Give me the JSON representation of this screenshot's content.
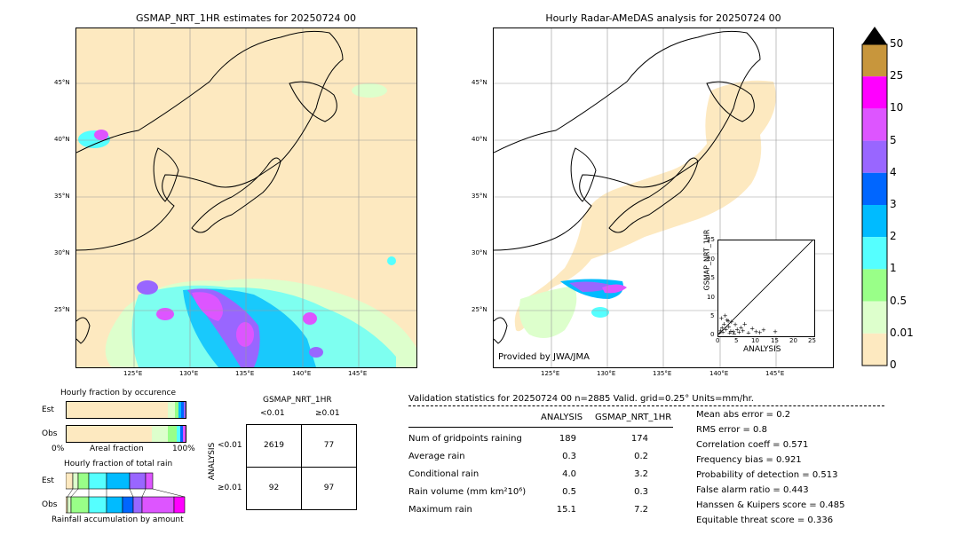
{
  "left_map": {
    "title": "GSMAP_NRT_1HR estimates for 20250724 00",
    "lat_labels": [
      "45°N",
      "40°N",
      "35°N",
      "30°N",
      "25°N"
    ],
    "lon_labels": [
      "125°E",
      "130°E",
      "135°E",
      "140°E",
      "145°E"
    ]
  },
  "right_map": {
    "title": "Hourly Radar-AMeDAS analysis for 20250724 00",
    "lat_labels": [
      "45°N",
      "40°N",
      "35°N",
      "30°N",
      "25°N"
    ],
    "lon_labels": [
      "125°E",
      "130°E",
      "135°E",
      "140°E",
      "145°E"
    ],
    "credit": "Provided by JWA/JMA"
  },
  "colorbar": {
    "ticks": [
      "50",
      "25",
      "10",
      "5",
      "4",
      "3",
      "2",
      "1",
      "0.5",
      "0.01",
      "0"
    ],
    "colors": [
      "#c8963c",
      "#ff00ff",
      "#dd55ff",
      "#9966ff",
      "#0066ff",
      "#00bbff",
      "#55ffff",
      "#99ff88",
      "#ddffcc",
      "#fde9c0"
    ]
  },
  "scatter": {
    "ylabel": "GSMAP_NRT_1HR",
    "xlabel": "ANALYSIS",
    "ticks": [
      "0",
      "5",
      "10",
      "15",
      "20",
      "25"
    ]
  },
  "fraction_occurrence": {
    "title": "Hourly fraction by occurence",
    "row_labels": [
      "Est",
      "Obs"
    ],
    "axis_left": "0%",
    "axis_mid": "Areal fraction",
    "axis_right": "100%"
  },
  "fraction_rain": {
    "title": "Hourly fraction of total rain",
    "row_labels": [
      "Est",
      "Obs"
    ],
    "axis_label": "Rainfall accumulation by amount"
  },
  "contingency": {
    "title": "GSMAP_NRT_1HR",
    "col_labels": [
      "<0.01",
      "≥0.01"
    ],
    "row_title": "ANALYSIS",
    "row_labels": [
      "<0.01",
      "≥0.01"
    ],
    "cells": [
      "2619",
      "77",
      "92",
      "97"
    ]
  },
  "validation": {
    "header": "Validation statistics for 20250724 00  n=2885 Valid. grid=0.25° Units=mm/hr.",
    "col_analysis": "ANALYSIS",
    "col_gsmap": "GSMAP_NRT_1HR",
    "rows": [
      {
        "label": "Num of gridpoints raining",
        "a": "189",
        "g": "174"
      },
      {
        "label": "Average rain",
        "a": "0.3",
        "g": "0.2"
      },
      {
        "label": "Conditional rain",
        "a": "4.0",
        "g": "3.2"
      },
      {
        "label": "Rain volume (mm km²10⁶)",
        "a": "0.5",
        "g": "0.3"
      },
      {
        "label": "Maximum rain",
        "a": "15.1",
        "g": "7.2"
      }
    ],
    "scores": [
      "Mean abs error =    0.2",
      "RMS error =    0.8",
      "Correlation coeff =  0.571",
      "Frequency bias =  0.921",
      "Probability of detection =  0.513",
      "False alarm ratio =  0.443",
      "Hanssen & Kuipers score =  0.485",
      "Equitable threat score =  0.336"
    ]
  },
  "chart_data": {
    "type": "scatter",
    "title": "",
    "xlabel": "ANALYSIS",
    "ylabel": "GSMAP_NRT_1HR",
    "xlim": [
      0,
      25
    ],
    "ylim": [
      0,
      25
    ],
    "x": [
      0.3,
      0.6,
      1.0,
      1.2,
      1.5,
      2.0,
      2.3,
      2.8,
      3.0,
      3.5,
      4.0,
      4.5,
      5.0,
      5.5,
      6.0,
      6.5,
      7.0,
      8.0,
      9.0,
      10.0,
      11.0,
      12.0,
      15.1,
      0.8,
      1.8,
      2.6,
      3.3,
      4.2
    ],
    "y": [
      0.5,
      1.2,
      2.0,
      0.8,
      3.0,
      1.5,
      4.0,
      2.2,
      0.5,
      3.5,
      1.0,
      2.8,
      1.5,
      0.8,
      2.0,
      1.2,
      3.0,
      0.6,
      1.8,
      1.0,
      0.7,
      1.4,
      1.0,
      4.5,
      5.2,
      3.8,
      1.1,
      0.4
    ]
  }
}
